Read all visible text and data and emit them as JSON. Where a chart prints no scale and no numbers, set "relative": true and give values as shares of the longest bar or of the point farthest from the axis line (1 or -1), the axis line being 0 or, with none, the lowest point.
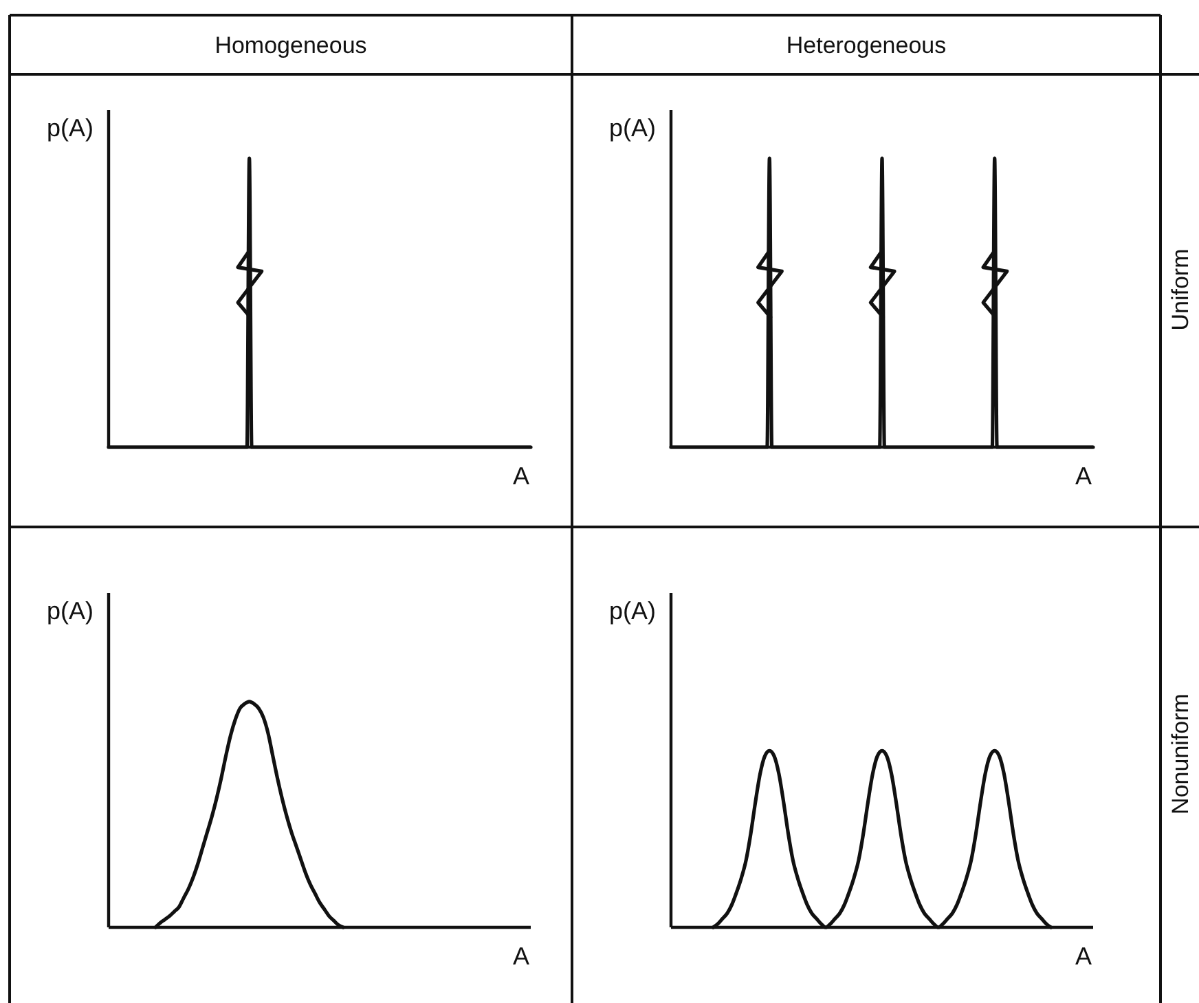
{
  "chart_data": [
    {
      "type": "line",
      "title": "Homogeneous",
      "xlabel": "A",
      "ylabel": "p(A)",
      "relative": true,
      "tick_labels": false,
      "color": "#111111",
      "categories": [
        null,
        null,
        null,
        null,
        null,
        null,
        null,
        null,
        null,
        null,
        null,
        null,
        null,
        null,
        null,
        null,
        null,
        null,
        null,
        null,
        null,
        null,
        null,
        null,
        null,
        null,
        null,
        null,
        null,
        null,
        null,
        null,
        null,
        null,
        null,
        null,
        null,
        null,
        null,
        null,
        null,
        null,
        null,
        null,
        null,
        null,
        null,
        null,
        null,
        null,
        null,
        null,
        null,
        null,
        null,
        null,
        null,
        null,
        null,
        null,
        null,
        null,
        null,
        null,
        null,
        null,
        null,
        null,
        null,
        null,
        null,
        null,
        null,
        null,
        null,
        null,
        null,
        null,
        null,
        null,
        null,
        null,
        null,
        null,
        null,
        null,
        null,
        null,
        null,
        null,
        null,
        null,
        null,
        null,
        null,
        null,
        null,
        null,
        null,
        null,
        null,
        null,
        null,
        null,
        null,
        null,
        null,
        null,
        null,
        null,
        null,
        null,
        null,
        null,
        null,
        null,
        null,
        null,
        null,
        null,
        null,
        null,
        null,
        null,
        null,
        null,
        null,
        null,
        null,
        null,
        null,
        null,
        null,
        null,
        null,
        null,
        null,
        null,
        null,
        null,
        null,
        null,
        null,
        null,
        null,
        null,
        null,
        null,
        null,
        null,
        null,
        null,
        null,
        null,
        null,
        null,
        null,
        null,
        null,
        null,
        null,
        null,
        null,
        null,
        null,
        null,
        null,
        null,
        null,
        null,
        null,
        null,
        null,
        null,
        null,
        null,
        null,
        null,
        null,
        null,
        null
      ],
      "values": [
        0,
        0,
        0,
        0,
        0,
        0,
        0,
        0,
        0,
        0,
        0,
        0,
        0,
        0,
        0,
        0,
        0,
        0,
        0,
        0,
        0,
        0,
        0,
        0,
        0,
        0,
        0,
        0,
        0,
        0,
        0,
        0,
        0,
        0,
        0,
        0,
        0,
        0,
        0,
        0,
        0,
        0,
        0,
        0,
        0,
        0,
        0,
        0,
        0,
        0,
        0,
        0,
        0,
        0,
        0,
        0,
        0,
        0,
        0,
        0,
        1,
        0,
        0,
        0,
        0,
        0,
        0,
        0,
        0,
        0,
        0,
        0,
        0,
        0,
        0,
        0,
        0,
        0,
        0,
        0,
        0,
        0,
        0,
        0,
        0,
        0,
        0,
        0,
        0,
        0,
        0,
        0,
        0,
        0,
        0,
        0,
        0,
        0,
        0,
        0,
        0,
        0,
        0,
        0,
        0,
        0,
        0,
        0,
        0,
        0,
        0,
        0,
        0,
        0,
        0,
        0,
        0,
        0,
        0,
        0,
        0,
        0,
        0,
        0,
        0,
        0,
        0,
        0,
        0,
        0,
        0,
        0,
        0,
        0,
        0,
        0,
        0,
        0,
        0,
        0,
        0,
        0,
        0,
        0,
        0,
        0,
        0,
        0,
        0,
        0,
        0,
        0,
        0,
        0,
        0,
        0,
        0,
        0,
        0,
        0,
        0,
        0,
        0,
        0,
        0,
        0,
        0,
        0,
        0,
        0,
        0,
        0,
        0,
        0,
        0,
        0,
        0,
        0,
        0,
        0,
        0
      ]
    },
    {
      "type": "line",
      "title": "Heterogeneous",
      "xlabel": "A",
      "ylabel": "p(A)",
      "relative": true,
      "tick_labels": false,
      "color": "#111111",
      "annotations": [
        "Uniform"
      ],
      "categories": [
        null,
        null,
        null,
        null,
        null,
        null,
        null,
        null,
        null,
        null,
        null,
        null,
        null,
        null,
        null,
        null,
        null,
        null,
        null,
        null,
        null,
        null,
        null,
        null,
        null,
        null,
        null,
        null,
        null,
        null,
        null,
        null,
        null,
        null,
        null,
        null,
        null,
        null,
        null,
        null,
        null,
        null,
        null,
        null,
        null,
        null,
        null,
        null,
        null,
        null,
        null,
        null,
        null,
        null,
        null,
        null,
        null,
        null,
        null,
        null,
        null,
        null,
        null,
        null,
        null,
        null,
        null,
        null,
        null,
        null,
        null,
        null,
        null,
        null,
        null,
        null,
        null,
        null,
        null,
        null,
        null,
        null,
        null,
        null,
        null,
        null,
        null,
        null,
        null,
        null,
        null,
        null,
        null,
        null,
        null,
        null,
        null,
        null,
        null,
        null,
        null,
        null,
        null,
        null,
        null,
        null,
        null,
        null,
        null,
        null,
        null,
        null,
        null,
        null,
        null,
        null,
        null,
        null,
        null,
        null,
        null,
        null,
        null,
        null,
        null,
        null,
        null,
        null,
        null,
        null,
        null,
        null,
        null,
        null,
        null,
        null,
        null,
        null,
        null,
        null,
        null,
        null,
        null,
        null,
        null,
        null,
        null,
        null,
        null,
        null,
        null,
        null,
        null,
        null,
        null,
        null,
        null,
        null,
        null,
        null,
        null,
        null,
        null,
        null,
        null,
        null,
        null,
        null,
        null,
        null,
        null,
        null,
        null,
        null,
        null,
        null,
        null,
        null,
        null,
        null,
        null
      ],
      "values": [
        0,
        0,
        0,
        0,
        0,
        0,
        0,
        0,
        0,
        0,
        0,
        0,
        0,
        0,
        0,
        0,
        0,
        0,
        0,
        0,
        0,
        0,
        0,
        0,
        0,
        0,
        0,
        0,
        0,
        0,
        0,
        0,
        0,
        0,
        0,
        0,
        0,
        0,
        0,
        0,
        0,
        0,
        1,
        0,
        0,
        0,
        0,
        0,
        0,
        0,
        0,
        0,
        0,
        0,
        0,
        0,
        0,
        0,
        0,
        0,
        0,
        0,
        0,
        0,
        0,
        0,
        0,
        0,
        0,
        0,
        0,
        0,
        0,
        0,
        0,
        0,
        0,
        0,
        0,
        0,
        0,
        0,
        0,
        0,
        0,
        0,
        0,
        0,
        0,
        0,
        1,
        0,
        0,
        0,
        0,
        0,
        0,
        0,
        0,
        0,
        0,
        0,
        0,
        0,
        0,
        0,
        0,
        0,
        0,
        0,
        0,
        0,
        0,
        0,
        0,
        0,
        0,
        0,
        0,
        0,
        0,
        0,
        0,
        0,
        0,
        0,
        0,
        0,
        0,
        0,
        0,
        0,
        0,
        0,
        0,
        0,
        0,
        0,
        1,
        0,
        0,
        0,
        0,
        0,
        0,
        0,
        0,
        0,
        0,
        0,
        0,
        0,
        0,
        0,
        0,
        0,
        0,
        0,
        0,
        0,
        0,
        0,
        0,
        0,
        0,
        0,
        0,
        0,
        0,
        0,
        0,
        0,
        0,
        0,
        0,
        0,
        0,
        0,
        0,
        0,
        0
      ]
    },
    {
      "type": "line",
      "xlabel": "A",
      "ylabel": "p(A)",
      "relative": true,
      "tick_labels": false,
      "color": "#111111",
      "categories": [
        null,
        null,
        null,
        null,
        null,
        null,
        null,
        null,
        null,
        null,
        null,
        null,
        null,
        null,
        null,
        null,
        null,
        null,
        null,
        null,
        null,
        null,
        null,
        null,
        null,
        null,
        null,
        null,
        null,
        null,
        null,
        null,
        null,
        null,
        null,
        null,
        null,
        null,
        null,
        null,
        null,
        null,
        null,
        null,
        null,
        null,
        null,
        null,
        null,
        null,
        null,
        null,
        null,
        null,
        null,
        null,
        null,
        null,
        null,
        null,
        null,
        null,
        null,
        null,
        null,
        null,
        null,
        null,
        null,
        null,
        null,
        null,
        null,
        null,
        null,
        null,
        null,
        null,
        null,
        null,
        null,
        null,
        null,
        null,
        null,
        null,
        null,
        null,
        null,
        null,
        null
      ],
      "values": [
        null,
        null,
        null,
        null,
        null,
        null,
        null,
        null,
        null,
        null,
        0,
        0.02,
        0.035,
        0.05,
        0.07,
        0.09,
        0.13,
        0.17,
        0.22,
        0.28,
        0.35,
        0.42,
        0.49,
        0.57,
        0.66,
        0.76,
        0.85,
        0.92,
        0.97,
        0.99,
        1,
        0.99,
        0.97,
        0.93,
        0.86,
        0.76,
        0.66,
        0.57,
        0.49,
        0.42,
        0.36,
        0.3,
        0.24,
        0.19,
        0.15,
        0.11,
        0.08,
        0.05,
        0.03,
        0.01,
        0,
        null,
        null,
        null,
        null,
        null,
        null,
        null,
        null,
        null,
        null,
        null,
        null,
        null,
        null,
        null,
        null,
        null,
        null,
        null,
        null,
        null,
        null,
        null,
        null,
        null,
        null,
        null,
        null,
        null,
        null,
        null,
        null,
        null,
        null,
        null,
        null,
        null,
        null,
        null,
        null
      ]
    },
    {
      "type": "line",
      "xlabel": "A",
      "ylabel": "p(A)",
      "relative": true,
      "tick_labels": false,
      "color": "#111111",
      "annotations": [
        "Nonuniform"
      ],
      "categories": [
        null,
        null,
        null,
        null,
        null,
        null,
        null,
        null,
        null,
        null,
        null,
        null,
        null,
        null,
        null,
        null,
        null,
        null,
        null,
        null,
        null,
        null,
        null,
        null,
        null,
        null,
        null,
        null,
        null,
        null,
        null,
        null,
        null,
        null,
        null,
        null,
        null,
        null,
        null,
        null,
        null,
        null,
        null,
        null,
        null,
        null,
        null,
        null,
        null,
        null,
        null,
        null,
        null,
        null,
        null,
        null,
        null,
        null,
        null,
        null,
        null,
        null,
        null,
        null,
        null,
        null,
        null,
        null,
        null,
        null,
        null,
        null,
        null,
        null,
        null,
        null,
        null,
        null,
        null,
        null,
        null,
        null,
        null,
        null,
        null,
        null,
        null,
        null,
        null,
        null,
        null
      ],
      "values": [
        null,
        null,
        null,
        null,
        null,
        null,
        null,
        null,
        null,
        0,
        0.02,
        0.05,
        0.08,
        0.13,
        0.2,
        0.28,
        0.38,
        0.53,
        0.71,
        0.87,
        0.97,
        1,
        0.97,
        0.87,
        0.71,
        0.53,
        0.38,
        0.28,
        0.2,
        0.13,
        0.08,
        0.05,
        0.02,
        0,
        0.02,
        0.05,
        0.08,
        0.13,
        0.2,
        0.28,
        0.38,
        0.53,
        0.71,
        0.87,
        0.97,
        1,
        0.97,
        0.87,
        0.71,
        0.53,
        0.38,
        0.28,
        0.2,
        0.13,
        0.08,
        0.05,
        0.02,
        0,
        0.02,
        0.05,
        0.08,
        0.13,
        0.2,
        0.28,
        0.38,
        0.53,
        0.71,
        0.87,
        0.97,
        1,
        0.97,
        0.87,
        0.71,
        0.53,
        0.38,
        0.28,
        0.2,
        0.13,
        0.08,
        0.05,
        0.02,
        0,
        null,
        null,
        null,
        null,
        null,
        null,
        null,
        null,
        null
      ]
    }
  ]
}
